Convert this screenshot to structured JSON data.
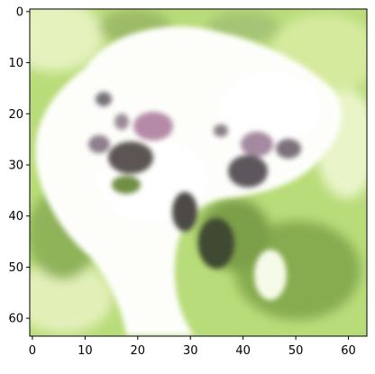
{
  "chart_data": {
    "type": "heatmap",
    "title": "",
    "xlabel": "",
    "ylabel": "",
    "xlim": [
      -0.5,
      63.5
    ],
    "ylim": [
      63.5,
      -0.5
    ],
    "x_ticks": [
      0,
      10,
      20,
      30,
      40,
      50,
      60
    ],
    "y_ticks": [
      0,
      10,
      20,
      30,
      40,
      50,
      60
    ],
    "x_tick_labels": [
      "0",
      "10",
      "20",
      "30",
      "40",
      "50",
      "60"
    ],
    "y_tick_labels": [
      "0",
      "10",
      "20",
      "30",
      "40",
      "50",
      "60"
    ],
    "image_size": [
      64,
      64
    ],
    "grid": false,
    "legend": "none",
    "colors": {
      "background_green": "#b9dc7a",
      "light_green": "#d8ecaa",
      "dark_green": "#6f8f45",
      "white_subject": "#ffffff",
      "shadow_gray": "#5b5552",
      "patch_pink": "#b58aa6",
      "patch_gray": "#777079",
      "frame": "#000000"
    }
  }
}
